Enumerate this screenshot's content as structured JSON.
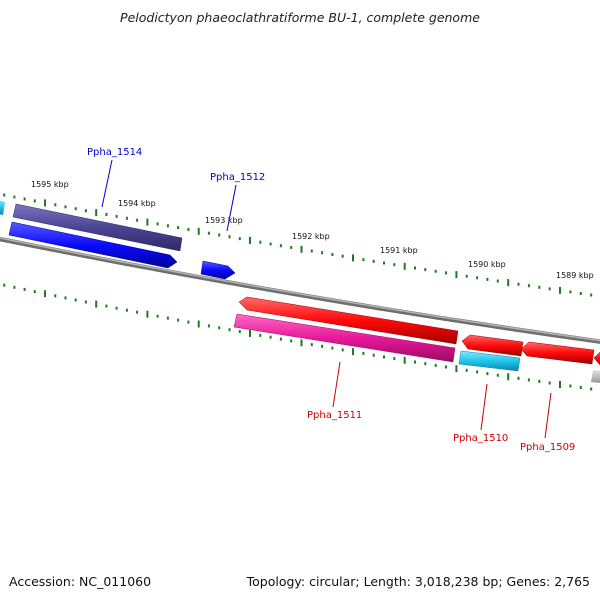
{
  "title": "Pelodictyon phaeoclathratiforme BU-1, complete genome",
  "footer": {
    "accession": "Accession: NC_011060",
    "stats": "Topology: circular; Length: 3,018,238 bp; Genes: 2,765"
  },
  "colors": {
    "backbone": "#8a8a8a",
    "tick": "#1f7a1f",
    "forward_gene": "#0a0aff",
    "forward_gene_dark": "#4b4594",
    "reverse_gene": "#ff0a0a",
    "reverse_gene_pink": "#e8189a",
    "rna_cyan": "#1ec6ec",
    "forward_label": "#0000cc",
    "reverse_label": "#cc0000"
  },
  "scale_labels": [
    {
      "text": "1595 kbp"
    },
    {
      "text": "1594 kbp"
    },
    {
      "text": "1593 kbp"
    },
    {
      "text": "1592 kbp"
    },
    {
      "text": "1591 kbp"
    },
    {
      "text": "1590 kbp"
    },
    {
      "text": "1589 kbp"
    }
  ],
  "gene_labels": [
    {
      "text": "Ppha_1514",
      "strand": "forward"
    },
    {
      "text": "Ppha_1512",
      "strand": "forward"
    },
    {
      "text": "Ppha_1511",
      "strand": "reverse"
    },
    {
      "text": "Ppha_1510",
      "strand": "reverse"
    },
    {
      "text": "Ppha_1509",
      "strand": "reverse"
    }
  ]
}
